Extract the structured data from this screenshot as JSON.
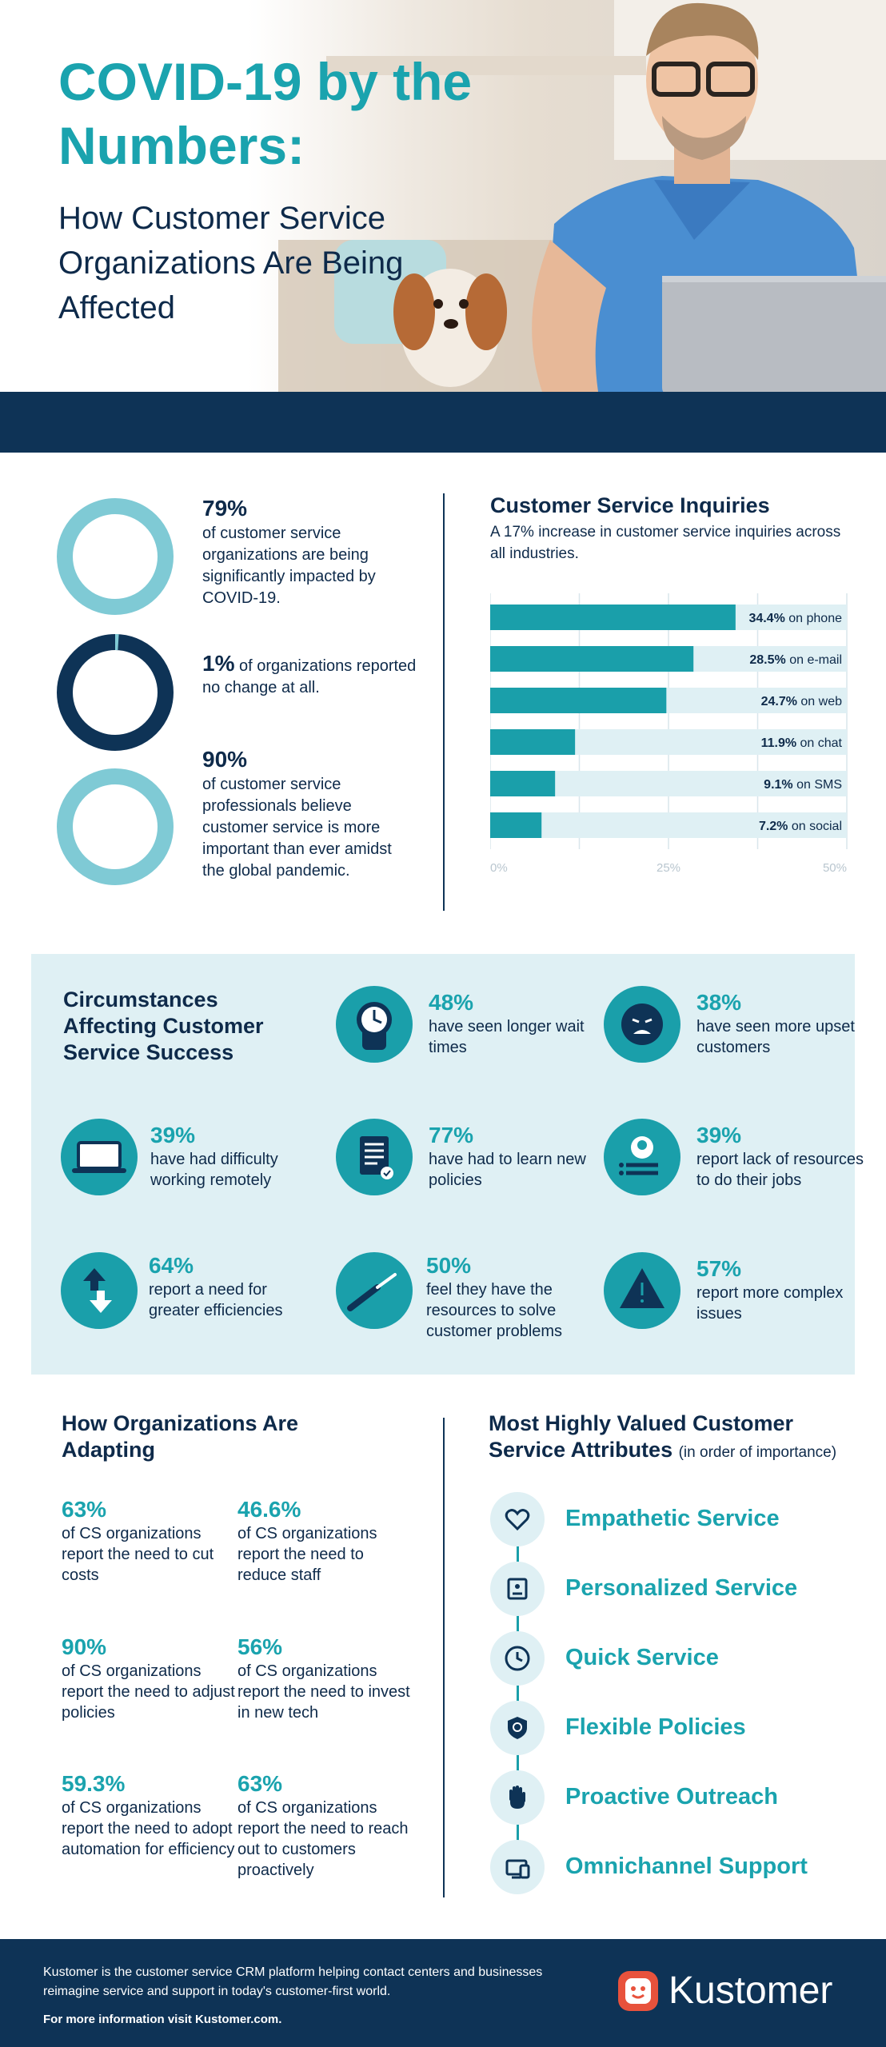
{
  "header": {
    "title": "COVID-19 by the Numbers:",
    "subtitle": "How Customer Service Organizations Are Being Affected"
  },
  "stats": [
    {
      "pct": "79%",
      "text": "of customer service organizations are being significantly impacted by COVID-19.",
      "value": 0.79
    },
    {
      "pct": "1%",
      "text": "of organizations reported no change at all.",
      "value": 0.01
    },
    {
      "pct": "90%",
      "text": "of customer service professionals believe customer service is more important than ever amidst the global pandemic.",
      "value": 0.9
    }
  ],
  "chart_data": {
    "type": "bar",
    "orientation": "horizontal",
    "title": "Customer Service Inquiries",
    "subtitle": "A 17% increase in customer service inquiries across all industries.",
    "categories": [
      "on phone",
      "on e-mail",
      "on web",
      "on chat",
      "on SMS",
      "on social"
    ],
    "values": [
      34.4,
      28.5,
      24.7,
      11.9,
      9.1,
      7.2
    ],
    "value_labels": [
      "34.4%",
      "28.5%",
      "24.7%",
      "11.9%",
      "9.1%",
      "7.2%"
    ],
    "xlim": [
      0,
      50
    ],
    "ticks": [
      "0%",
      "25%",
      "50%"
    ],
    "grid": true
  },
  "circumstances": {
    "title": "Circumstances Affecting Customer Service Success",
    "items": [
      {
        "pct": "48%",
        "text": "have seen longer wait times",
        "icon": "clock-icon"
      },
      {
        "pct": "38%",
        "text": "have seen more upset customers",
        "icon": "upset-face-icon"
      },
      {
        "pct": "39%",
        "text": "have had difficulty working remotely",
        "icon": "laptop-icon"
      },
      {
        "pct": "77%",
        "text": "have had to learn new policies",
        "icon": "document-icon"
      },
      {
        "pct": "39%",
        "text": "report lack of resources to do their jobs",
        "icon": "profile-card-icon"
      },
      {
        "pct": "64%",
        "text": "report a need for greater efficiencies",
        "icon": "arrows-icon"
      },
      {
        "pct": "50%",
        "text": "feel they have the resources to solve customer problems",
        "icon": "screwdriver-icon"
      },
      {
        "pct": "57%",
        "text": "report more complex issues",
        "icon": "warning-icon"
      }
    ]
  },
  "adapting": {
    "title": "How Organizations Are Adapting",
    "items": [
      {
        "pct": "63%",
        "text": "of CS organizations report the need to cut costs"
      },
      {
        "pct": "46.6%",
        "text": "of CS organizations report the need to reduce staff"
      },
      {
        "pct": "90%",
        "text": "of CS organizations report the need to adjust policies"
      },
      {
        "pct": "56%",
        "text": "of CS organizations report the need to invest in new tech"
      },
      {
        "pct": "59.3%",
        "text": "of CS organizations report the need to adopt automation for efficiency"
      },
      {
        "pct": "63%",
        "text": "of CS organizations report the need to reach out to customers proactively"
      }
    ]
  },
  "attributes": {
    "title": "Most Highly Valued Customer Service Attributes",
    "note": "(in order of importance)",
    "items": [
      {
        "label": "Empathetic Service",
        "icon": "heart-icon"
      },
      {
        "label": "Personalized Service",
        "icon": "id-card-icon"
      },
      {
        "label": "Quick Service",
        "icon": "clock-icon"
      },
      {
        "label": "Flexible Policies",
        "icon": "shield-icon"
      },
      {
        "label": "Proactive Outreach",
        "icon": "hand-icon"
      },
      {
        "label": "Omnichannel Support",
        "icon": "devices-icon"
      }
    ]
  },
  "footer": {
    "text": "Kustomer is the customer service CRM platform helping contact centers and businesses reimagine service and support in today's customer-first world.",
    "more": "For more information visit Kustomer.com.",
    "brand": "Kustomer"
  },
  "colors": {
    "navy": "#0e3356",
    "teal": "#1a9faa",
    "light_teal": "#7fcad5",
    "pale": "#dff0f4",
    "brand_red": "#e8523c"
  }
}
